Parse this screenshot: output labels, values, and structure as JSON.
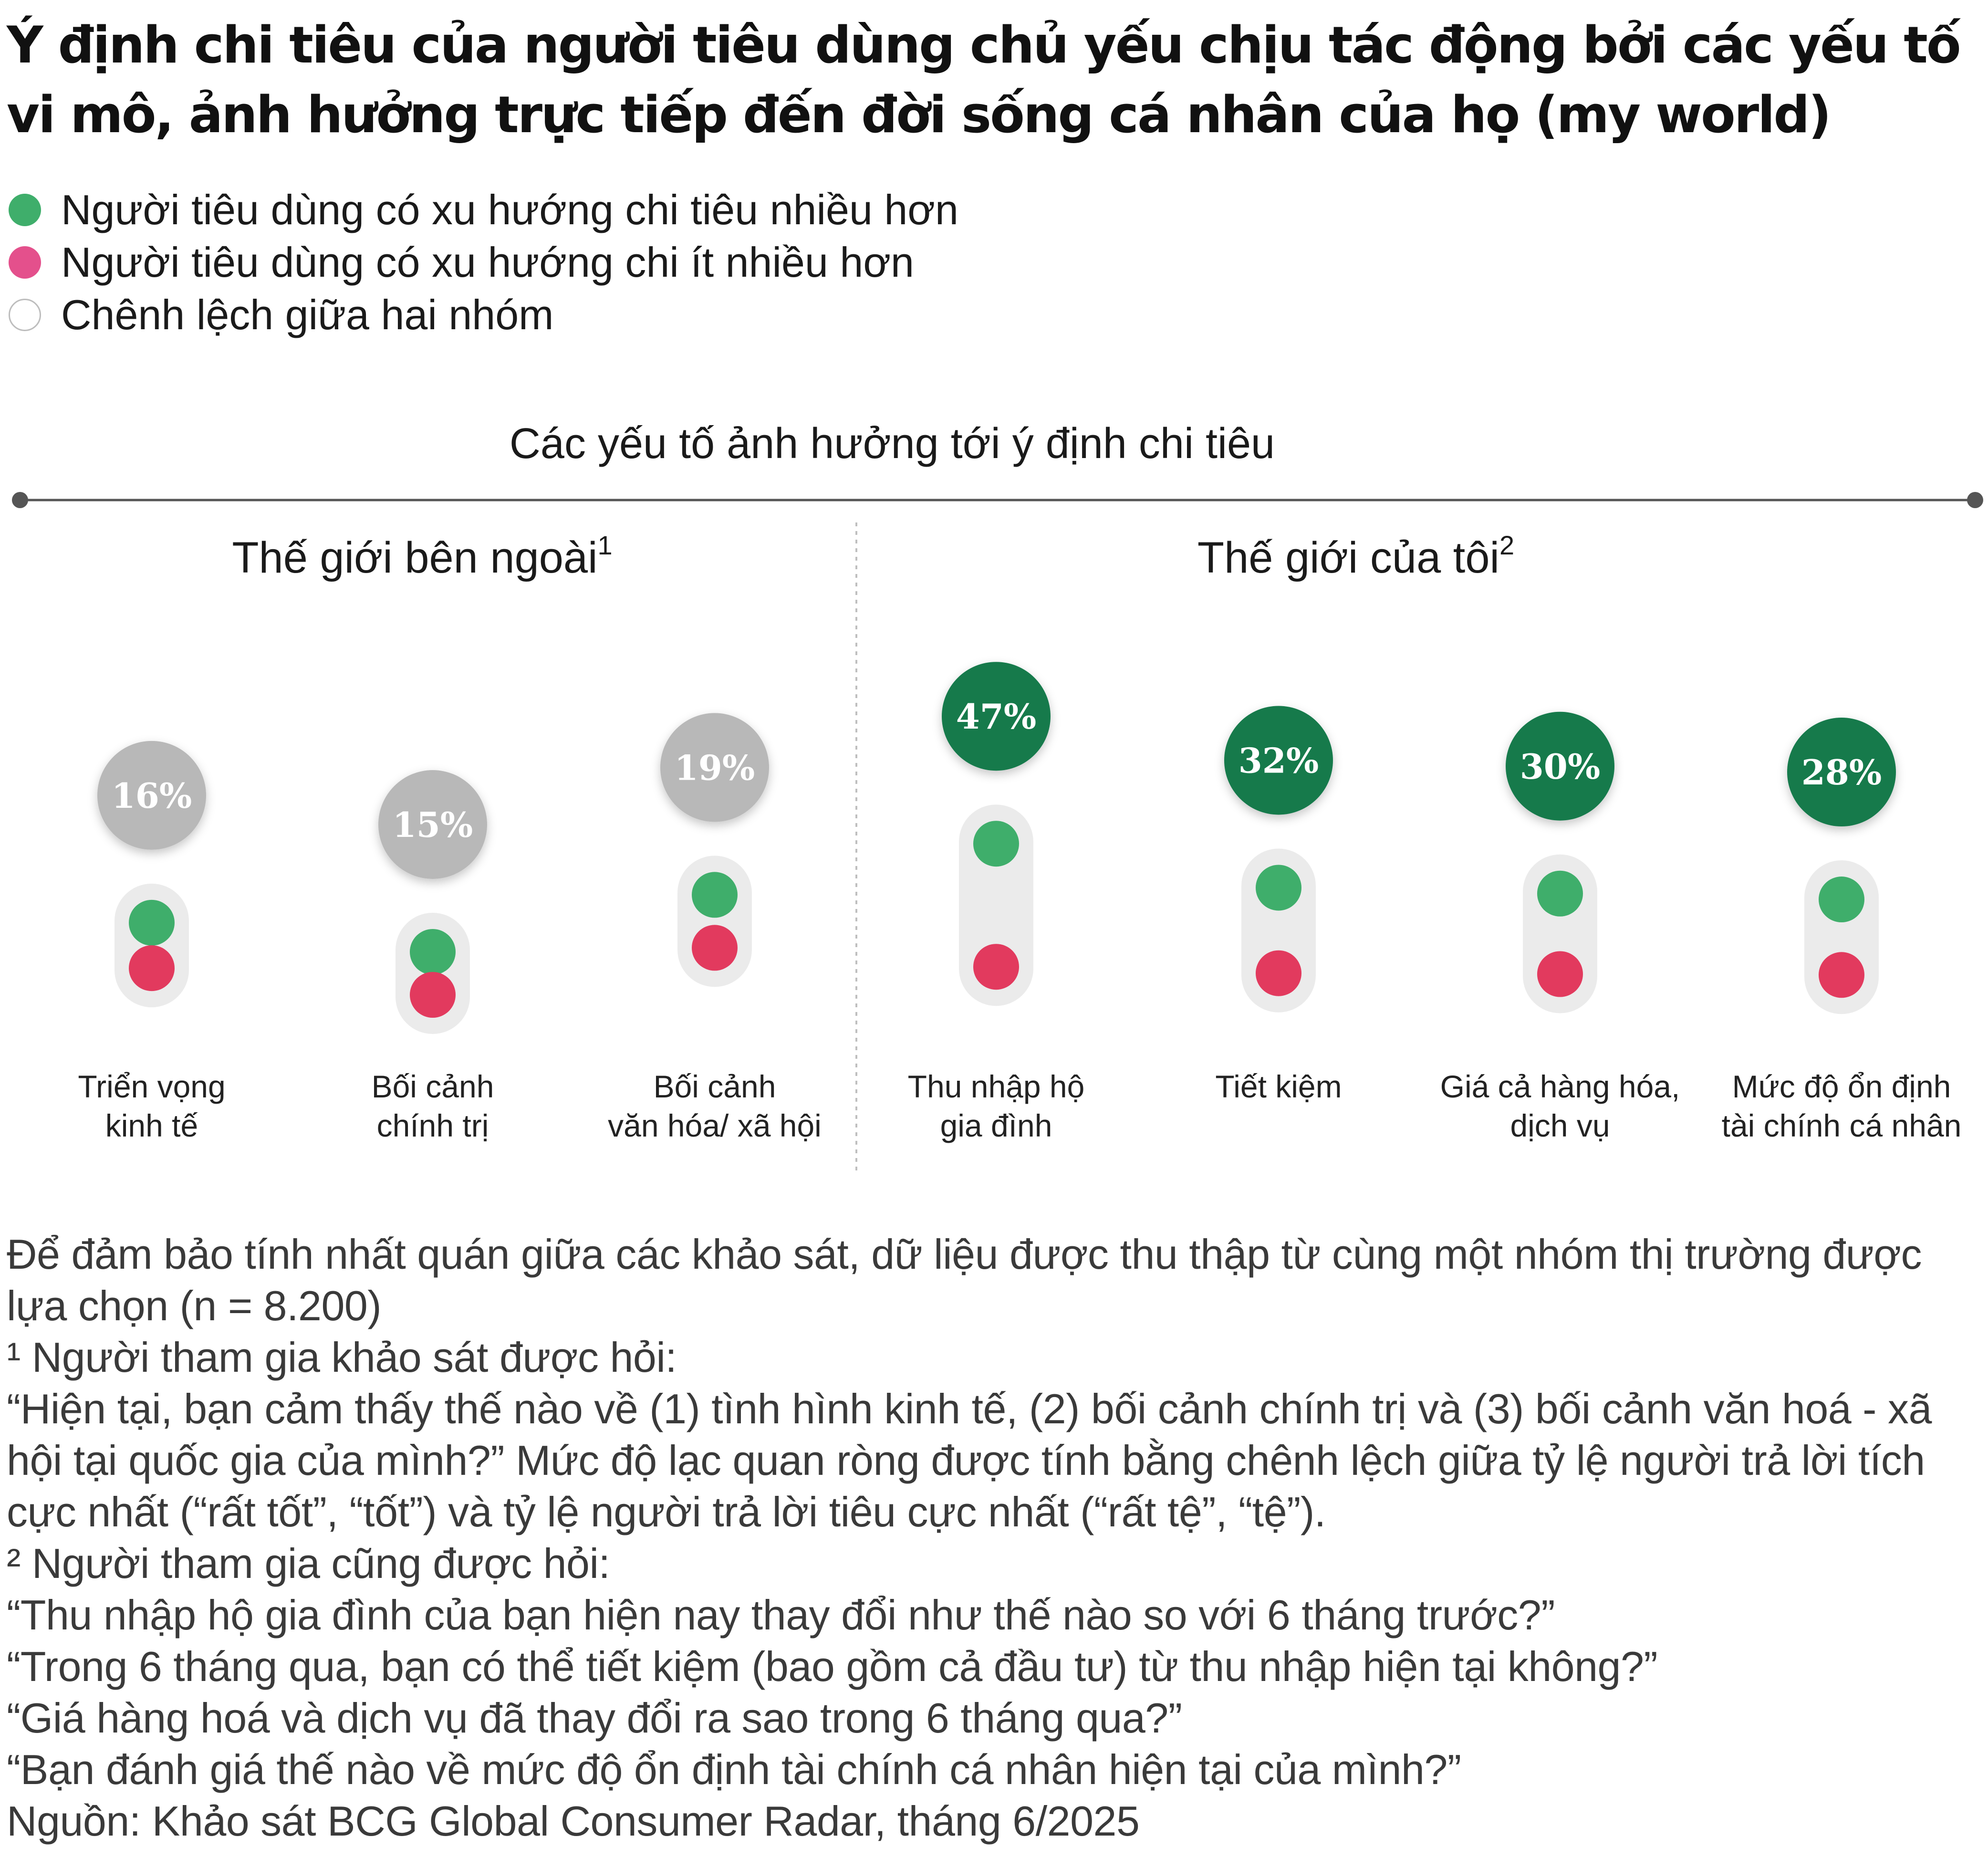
{
  "title": "Ý định chi tiêu của người tiêu dùng chủ yếu chịu tác động bởi các yếu tố vi mô, ảnh hưởng trực tiếp đến đời sống cá nhân của họ (my world)",
  "legend": [
    {
      "label": "Người tiêu dùng có xu hướng chi tiêu nhiều hơn",
      "color": "#3fae6b"
    },
    {
      "label": "Người tiêu dùng có xu hướng chi ít nhiều hơn",
      "color": "#e4508c"
    },
    {
      "label": "Chênh lệch giữa hai nhóm",
      "color": "#ffffff"
    }
  ],
  "chart_data": {
    "type": "dot-gap",
    "axis_title": "Các yếu tố ảnh hưởng tới ý định chi tiêu",
    "groups": [
      {
        "label": "Thế giới bên ngoài",
        "sup": "1"
      },
      {
        "label": "Thế giới của tôi",
        "sup": "2"
      }
    ],
    "series": [
      "Người tiêu dùng có xu hướng chi tiêu nhiều hơn",
      "Người tiêu dùng có xu hướng chi ít nhiều hơn"
    ],
    "items": [
      {
        "group": 0,
        "label_lines": [
          "Triển vọng",
          "kinh tế"
        ],
        "gap": 16,
        "gap_label": "16%"
      },
      {
        "group": 0,
        "label_lines": [
          "Bối cảnh",
          "chính trị"
        ],
        "gap": 15,
        "gap_label": "15%"
      },
      {
        "group": 0,
        "label_lines": [
          "Bối cảnh",
          "văn hóa/ xã hội"
        ],
        "gap": 19,
        "gap_label": "19%"
      },
      {
        "group": 1,
        "label_lines": [
          "Thu nhập hộ",
          "gia đình"
        ],
        "gap": 47,
        "gap_label": "47%"
      },
      {
        "group": 1,
        "label_lines": [
          "Tiết kiệm"
        ],
        "gap": 32,
        "gap_label": "32%"
      },
      {
        "group": 1,
        "label_lines": [
          "Giá cả hàng hóa,",
          "dịch vụ"
        ],
        "gap": 30,
        "gap_label": "30%"
      },
      {
        "group": 1,
        "label_lines": [
          "Mức độ ổn định",
          "tài chính cá nhân"
        ],
        "gap": 28,
        "gap_label": "28%"
      }
    ],
    "colors": {
      "more": "#3fae6b",
      "less": "#e23a5e",
      "gap_outer": "#b8b8b8",
      "gap_micro": "#127a4b",
      "track": "#ebebeb",
      "axis": "#555555"
    }
  },
  "notes": [
    "Để đảm bảo tính nhất quán giữa các khảo sát, dữ liệu được thu thập từ cùng một nhóm thị trường được lựa chọn (n = 8.200)",
    "¹ Người tham gia khảo sát được hỏi:",
    "“Hiện tại, bạn cảm thấy thế nào về (1) tình hình kinh tế, (2) bối cảnh chính trị và (3) bối cảnh văn hoá - xã hội tại quốc gia của mình?” Mức độ lạc quan ròng được tính bằng chênh lệch giữa tỷ lệ người trả lời tích cực nhất (“rất tốt”, “tốt”) và tỷ lệ người trả lời tiêu cực nhất (“rất tệ”, “tệ”).",
    "² Người tham gia cũng được hỏi:",
    "“Thu nhập hộ gia đình của bạn hiện nay thay đổi như thế nào so với 6 tháng trước?”",
    "“Trong 6 tháng qua, bạn có thể tiết kiệm (bao gồm cả đầu tư) từ thu nhập hiện tại không?”",
    "“Giá hàng hoá và dịch vụ đã thay đổi ra sao trong 6 tháng qua?”",
    "“Bạn đánh giá thế nào về mức độ ổn định tài chính cá nhân hiện tại của mình?”",
    "Nguồn: Khảo sát BCG Global Consumer Radar, tháng 6/2025"
  ]
}
